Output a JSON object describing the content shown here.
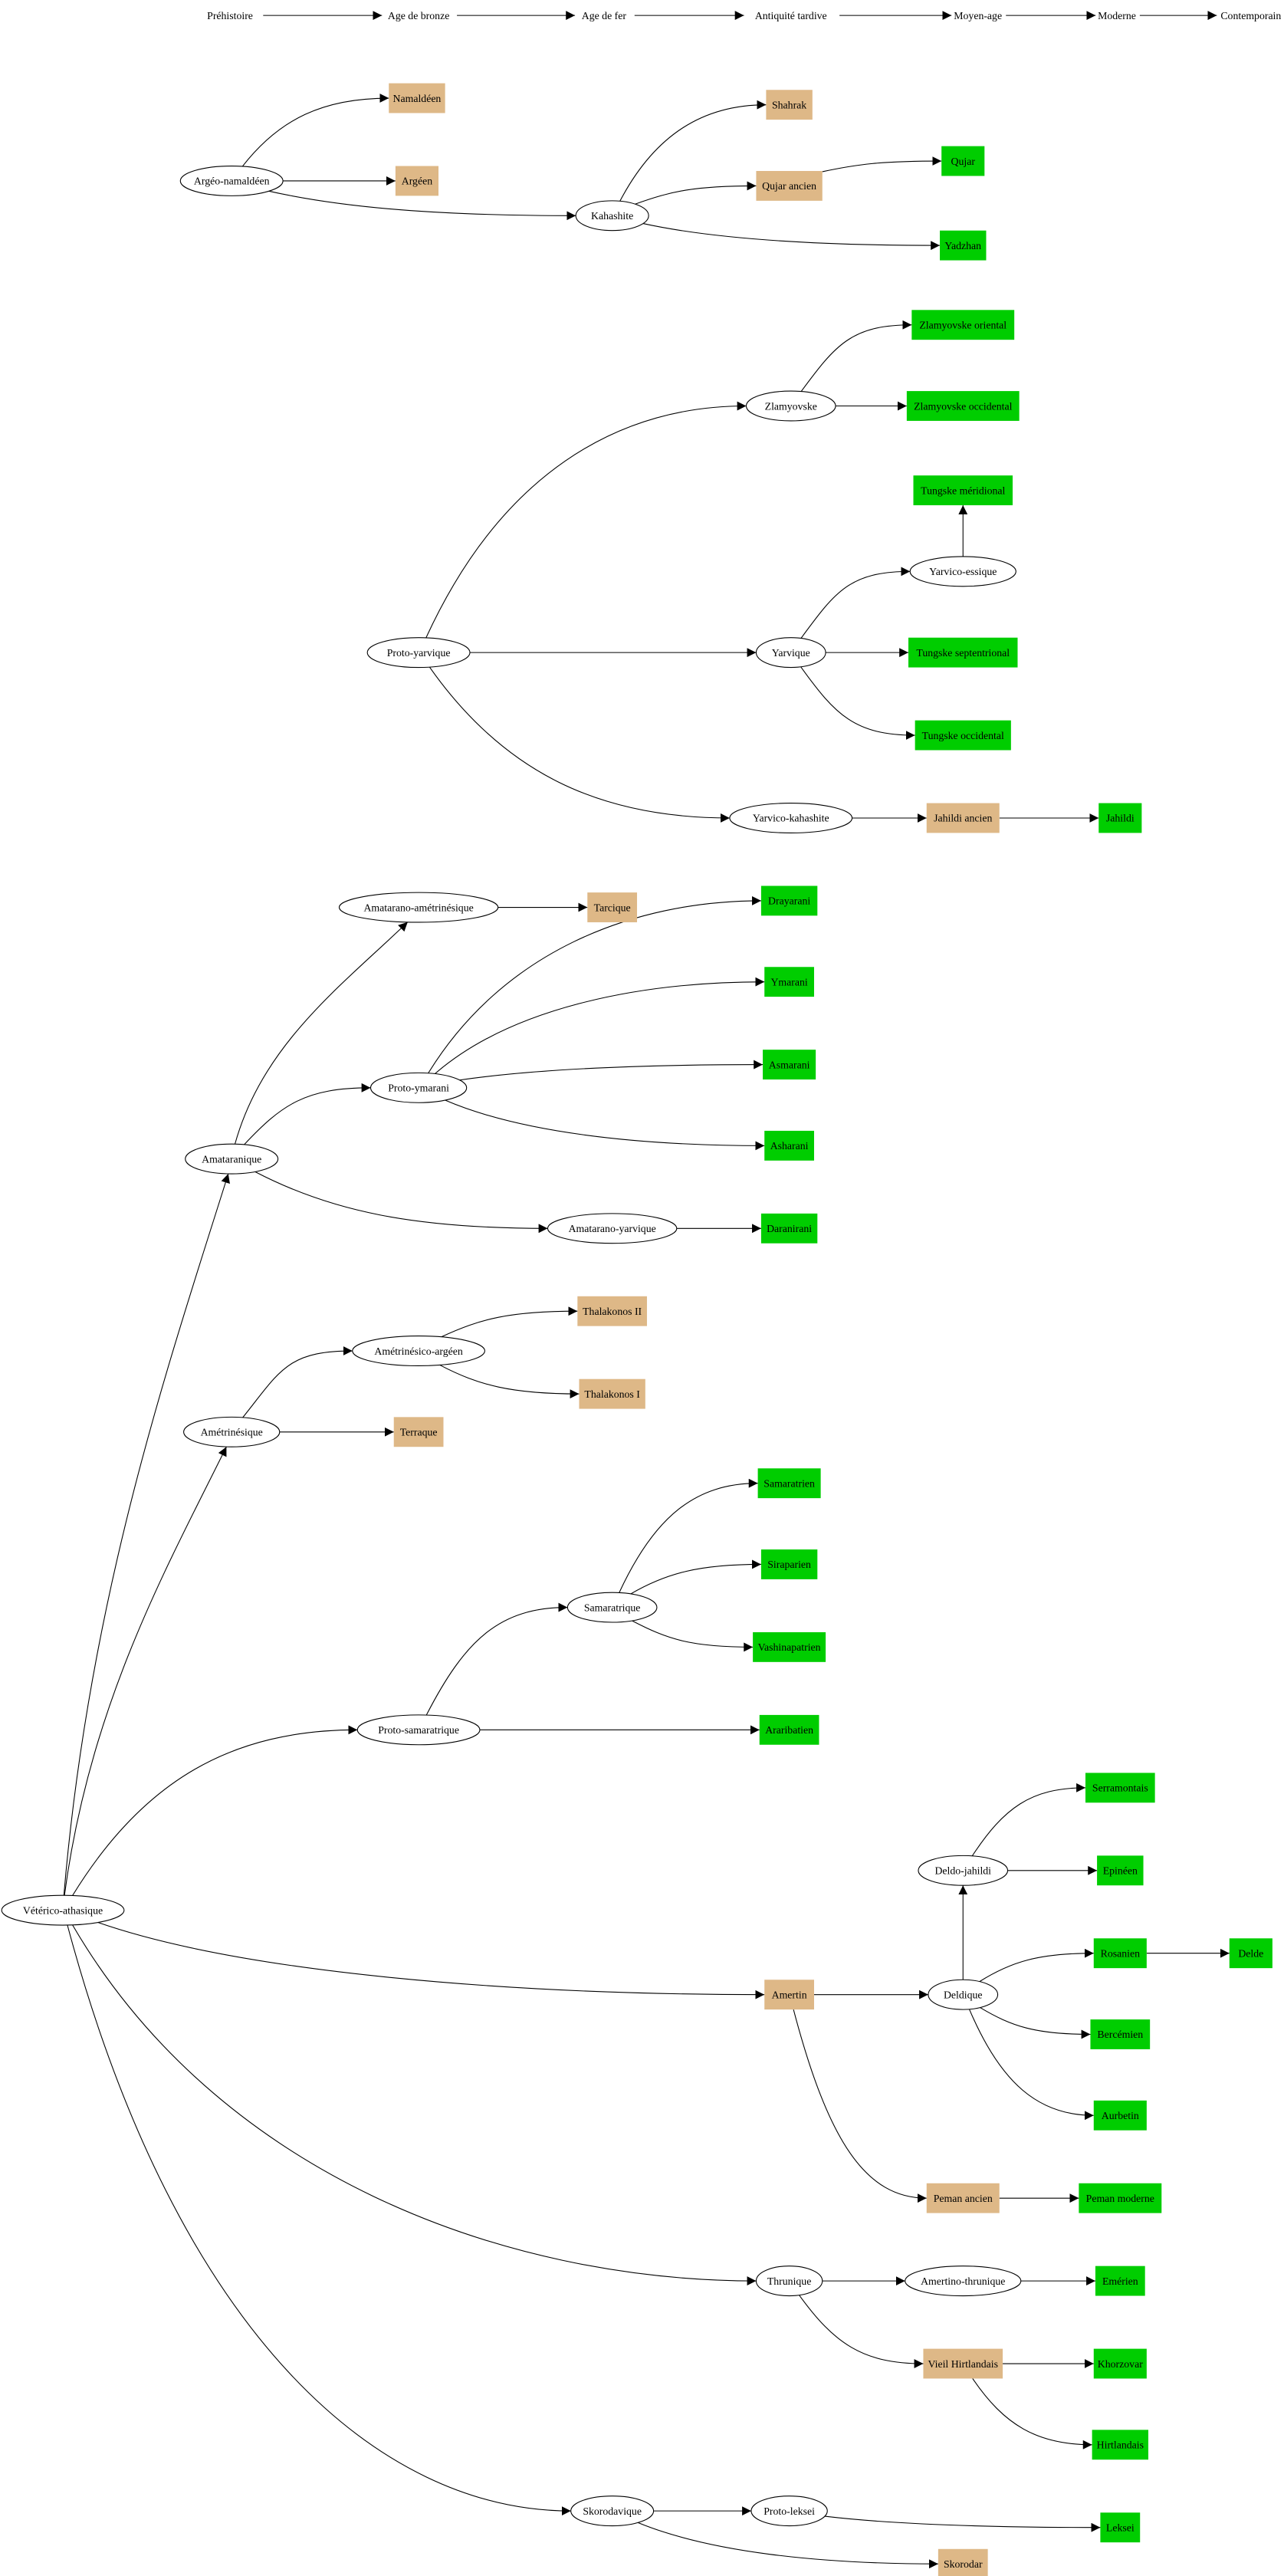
{
  "colors": {
    "ancient": "#deb887",
    "modern": "#00cd00",
    "proto": "#ffffff",
    "edge": "#000000"
  },
  "timeline": [
    "Préhistoire",
    "Age de bronze",
    "Age de fer",
    "Antiquité tardive",
    "Moyen-age",
    "Moderne",
    "Contemporain"
  ],
  "nodes": [
    {
      "id": "argeo",
      "label": "Argéo-namaldéen",
      "kind": "proto"
    },
    {
      "id": "namaldeen",
      "label": "Namaldéen",
      "kind": "ancient"
    },
    {
      "id": "argeen",
      "label": "Argéen",
      "kind": "ancient"
    },
    {
      "id": "kahashite",
      "label": "Kahashite",
      "kind": "proto"
    },
    {
      "id": "shahrak",
      "label": "Shahrak",
      "kind": "ancient"
    },
    {
      "id": "qujar_ancien",
      "label": "Qujar ancien",
      "kind": "ancient"
    },
    {
      "id": "qujar",
      "label": "Qujar",
      "kind": "modern"
    },
    {
      "id": "yadzhan",
      "label": "Yadzhan",
      "kind": "modern"
    },
    {
      "id": "proto_yarvique",
      "label": "Proto-yarvique",
      "kind": "proto"
    },
    {
      "id": "zlamyovske",
      "label": "Zlamyovske",
      "kind": "proto"
    },
    {
      "id": "zl_oriental",
      "label": "Zlamyovske oriental",
      "kind": "modern"
    },
    {
      "id": "zl_occidental",
      "label": "Zlamyovske occidental",
      "kind": "modern"
    },
    {
      "id": "tungske_mer",
      "label": "Tungske méridional",
      "kind": "modern"
    },
    {
      "id": "yarvico_essique",
      "label": "Yarvico-essique",
      "kind": "proto"
    },
    {
      "id": "yarvique",
      "label": "Yarvique",
      "kind": "proto"
    },
    {
      "id": "tungske_sept",
      "label": "Tungske septentrional",
      "kind": "modern"
    },
    {
      "id": "tungske_occ",
      "label": "Tungske occidental",
      "kind": "modern"
    },
    {
      "id": "yarvico_kah",
      "label": "Yarvico-kahashite",
      "kind": "proto"
    },
    {
      "id": "jahildi_ancien",
      "label": "Jahildi ancien",
      "kind": "ancient"
    },
    {
      "id": "jahildi",
      "label": "Jahildi",
      "kind": "modern"
    },
    {
      "id": "amataranique",
      "label": "Amataranique",
      "kind": "proto"
    },
    {
      "id": "amat_ametr",
      "label": "Amatarano-amétrinésique",
      "kind": "proto"
    },
    {
      "id": "tarcique",
      "label": "Tarcique",
      "kind": "ancient"
    },
    {
      "id": "proto_ymarani",
      "label": "Proto-ymarani",
      "kind": "proto"
    },
    {
      "id": "drayarani",
      "label": "Drayarani",
      "kind": "modern"
    },
    {
      "id": "ymarani",
      "label": "Ymarani",
      "kind": "modern"
    },
    {
      "id": "asmarani",
      "label": "Asmarani",
      "kind": "modern"
    },
    {
      "id": "asharani",
      "label": "Asharani",
      "kind": "modern"
    },
    {
      "id": "amat_yarvique",
      "label": "Amatarano-yarvique",
      "kind": "proto"
    },
    {
      "id": "daranirani",
      "label": "Daranirani",
      "kind": "modern"
    },
    {
      "id": "ametrinesique",
      "label": "Amétrinésique",
      "kind": "proto"
    },
    {
      "id": "ametr_argeen",
      "label": "Amétrinésico-argéen",
      "kind": "proto"
    },
    {
      "id": "thalakonos2",
      "label": "Thalakonos II",
      "kind": "ancient"
    },
    {
      "id": "thalakonos1",
      "label": "Thalakonos I",
      "kind": "ancient"
    },
    {
      "id": "terraque",
      "label": "Terraque",
      "kind": "ancient"
    },
    {
      "id": "samaratrique",
      "label": "Samaratrique",
      "kind": "proto"
    },
    {
      "id": "samaratrien",
      "label": "Samaratrien",
      "kind": "modern"
    },
    {
      "id": "siraparien",
      "label": "Siraparien",
      "kind": "modern"
    },
    {
      "id": "vashinapatrien",
      "label": "Vashinapatrien",
      "kind": "modern"
    },
    {
      "id": "proto_samaratrique",
      "label": "Proto-samaratrique",
      "kind": "proto"
    },
    {
      "id": "araribatien",
      "label": "Araribatien",
      "kind": "modern"
    },
    {
      "id": "deldo_jahildi",
      "label": "Deldo-jahildi",
      "kind": "proto"
    },
    {
      "id": "serramontais",
      "label": "Serramontais",
      "kind": "modern"
    },
    {
      "id": "epineen",
      "label": "Epinéen",
      "kind": "modern"
    },
    {
      "id": "rosanien",
      "label": "Rosanien",
      "kind": "modern"
    },
    {
      "id": "delde",
      "label": "Delde",
      "kind": "modern"
    },
    {
      "id": "deldique",
      "label": "Deldique",
      "kind": "proto"
    },
    {
      "id": "bercemien",
      "label": "Bercémien",
      "kind": "modern"
    },
    {
      "id": "aurbetin",
      "label": "Aurbetin",
      "kind": "modern"
    },
    {
      "id": "amertin",
      "label": "Amertin",
      "kind": "ancient"
    },
    {
      "id": "peman_ancien",
      "label": "Peman ancien",
      "kind": "ancient"
    },
    {
      "id": "peman_moderne",
      "label": "Peman moderne",
      "kind": "modern"
    },
    {
      "id": "veterico",
      "label": "Vétérico-athasique",
      "kind": "proto"
    },
    {
      "id": "thrunique",
      "label": "Thrunique",
      "kind": "proto"
    },
    {
      "id": "amertino_thrunique",
      "label": "Amertino-thrunique",
      "kind": "proto"
    },
    {
      "id": "emerien",
      "label": "Emérien",
      "kind": "modern"
    },
    {
      "id": "vieil_hirt",
      "label": "Vieil Hirtlandais",
      "kind": "ancient"
    },
    {
      "id": "khorzovar",
      "label": "Khorzovar",
      "kind": "modern"
    },
    {
      "id": "hirtlandais",
      "label": "Hirtlandais",
      "kind": "modern"
    },
    {
      "id": "skorodavique",
      "label": "Skorodavique",
      "kind": "proto"
    },
    {
      "id": "proto_leksei",
      "label": "Proto-leksei",
      "kind": "proto"
    },
    {
      "id": "leksei",
      "label": "Leksei",
      "kind": "modern"
    },
    {
      "id": "skorodar",
      "label": "Skorodar",
      "kind": "ancient"
    }
  ],
  "edges": [
    [
      "argeo",
      "namaldeen"
    ],
    [
      "argeo",
      "argeen"
    ],
    [
      "argeo",
      "kahashite"
    ],
    [
      "kahashite",
      "shahrak"
    ],
    [
      "kahashite",
      "qujar_ancien"
    ],
    [
      "kahashite",
      "yadzhan"
    ],
    [
      "qujar_ancien",
      "qujar"
    ],
    [
      "proto_yarvique",
      "zlamyovske"
    ],
    [
      "proto_yarvique",
      "yarvique"
    ],
    [
      "proto_yarvique",
      "yarvico_kah"
    ],
    [
      "zlamyovske",
      "zl_oriental"
    ],
    [
      "zlamyovske",
      "zl_occidental"
    ],
    [
      "yarvique",
      "yarvico_essique"
    ],
    [
      "yarvique",
      "tungske_sept"
    ],
    [
      "yarvique",
      "tungske_occ"
    ],
    [
      "yarvico_essique",
      "tungske_mer"
    ],
    [
      "yarvico_kah",
      "jahildi_ancien"
    ],
    [
      "jahildi_ancien",
      "jahildi"
    ],
    [
      "veterico",
      "amataranique"
    ],
    [
      "veterico",
      "ametrinesique"
    ],
    [
      "veterico",
      "proto_samaratrique"
    ],
    [
      "veterico",
      "amertin"
    ],
    [
      "veterico",
      "thrunique"
    ],
    [
      "veterico",
      "skorodavique"
    ],
    [
      "amataranique",
      "amat_ametr"
    ],
    [
      "amataranique",
      "proto_ymarani"
    ],
    [
      "amataranique",
      "amat_yarvique"
    ],
    [
      "amat_ametr",
      "tarcique"
    ],
    [
      "proto_ymarani",
      "drayarani"
    ],
    [
      "proto_ymarani",
      "ymarani"
    ],
    [
      "proto_ymarani",
      "asmarani"
    ],
    [
      "proto_ymarani",
      "asharani"
    ],
    [
      "amat_yarvique",
      "daranirani"
    ],
    [
      "ametrinesique",
      "ametr_argeen"
    ],
    [
      "ametrinesique",
      "terraque"
    ],
    [
      "ametr_argeen",
      "thalakonos2"
    ],
    [
      "ametr_argeen",
      "thalakonos1"
    ],
    [
      "proto_samaratrique",
      "samaratrique"
    ],
    [
      "proto_samaratrique",
      "araribatien"
    ],
    [
      "samaratrique",
      "samaratrien"
    ],
    [
      "samaratrique",
      "siraparien"
    ],
    [
      "samaratrique",
      "vashinapatrien"
    ],
    [
      "amertin",
      "deldique"
    ],
    [
      "amertin",
      "peman_ancien"
    ],
    [
      "deldique",
      "deldo_jahildi"
    ],
    [
      "deldique",
      "rosanien"
    ],
    [
      "deldique",
      "bercemien"
    ],
    [
      "deldique",
      "aurbetin"
    ],
    [
      "deldo_jahildi",
      "serramontais"
    ],
    [
      "deldo_jahildi",
      "epineen"
    ],
    [
      "rosanien",
      "delde"
    ],
    [
      "peman_ancien",
      "peman_moderne"
    ],
    [
      "thrunique",
      "amertino_thrunique"
    ],
    [
      "thrunique",
      "vieil_hirt"
    ],
    [
      "amertino_thrunique",
      "emerien"
    ],
    [
      "vieil_hirt",
      "khorzovar"
    ],
    [
      "vieil_hirt",
      "hirtlandais"
    ],
    [
      "skorodavique",
      "proto_leksei"
    ],
    [
      "skorodavique",
      "skorodar"
    ],
    [
      "proto_leksei",
      "leksei"
    ]
  ]
}
